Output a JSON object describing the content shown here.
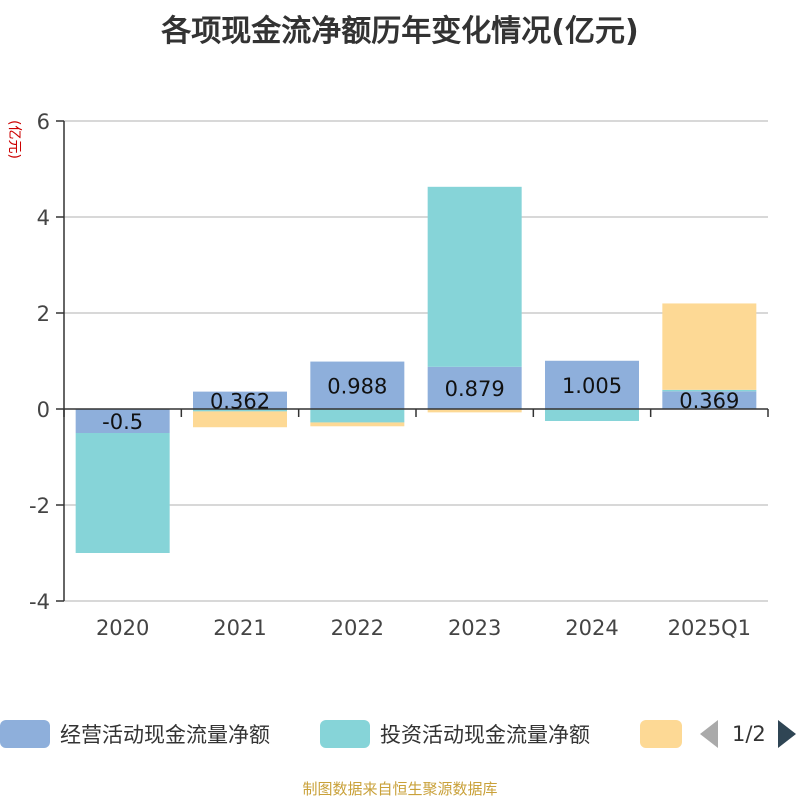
{
  "colors": {
    "operating": "#8eafdb",
    "investing": "#86d4d8",
    "financing": "#fdd995",
    "axis_unit": "#cc0000",
    "source": "#c9a13a"
  },
  "legend": {
    "pager_text": "1/2",
    "prev_icon": "triangle-left-icon",
    "next_icon": "triangle-right-icon"
  },
  "source_text": "制图数据来自恒生聚源数据库",
  "chart_data": {
    "type": "bar",
    "stacked": true,
    "title": "各项现金流净额历年变化情况(亿元)",
    "ylabel": "(亿元)",
    "xlabel": "",
    "categories": [
      "2020",
      "2021",
      "2022",
      "2023",
      "2024",
      "2025Q1"
    ],
    "y_ticks": [
      "6",
      "4",
      "2",
      "0",
      "-2",
      "-4"
    ],
    "ylim": [
      -4,
      6
    ],
    "grid": true,
    "legend_position": "bottom",
    "series": [
      {
        "name": "经营活动现金流量净额",
        "values": [
          -0.5,
          0.362,
          0.988,
          0.879,
          1.005,
          0.369
        ],
        "labels": [
          "-0.5",
          "0.362",
          "0.988",
          "0.879",
          "1.005",
          "0.369"
        ]
      },
      {
        "name": "投资活动现金流量净额",
        "values": [
          -2.5,
          -0.05,
          -0.28,
          3.75,
          -0.25,
          0.03
        ]
      },
      {
        "name": "",
        "values": [
          0.0,
          -0.33,
          -0.08,
          -0.07,
          0.0,
          1.8
        ]
      }
    ]
  }
}
